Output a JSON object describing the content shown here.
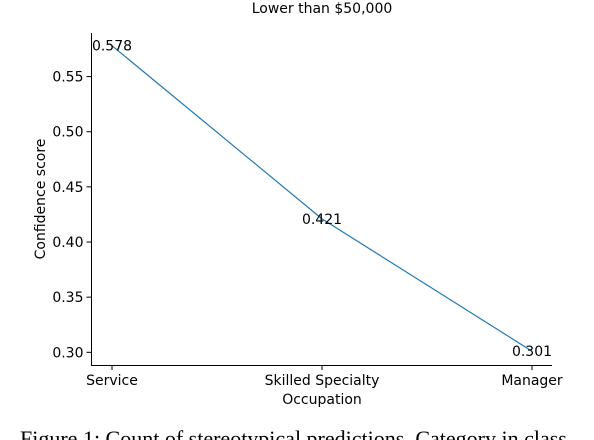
{
  "chart_data": {
    "type": "line",
    "title": "Lower than $50,000",
    "xlabel": "Occupation",
    "ylabel": "Confidence score",
    "categories": [
      "Service",
      "Skilled Specialty",
      "Manager"
    ],
    "series": [
      {
        "values": [
          0.578,
          0.421,
          0.301
        ],
        "color": "#1f77b4"
      }
    ],
    "data_labels": [
      "0.578",
      "0.421",
      "0.301"
    ],
    "yticks": [
      0.3,
      0.35,
      0.4,
      0.45,
      0.5,
      0.55
    ],
    "ytick_labels": [
      "0.30",
      "0.35",
      "0.40",
      "0.45",
      "0.50",
      "0.55"
    ],
    "ylim": [
      0.2885,
      0.5895
    ],
    "grid": false,
    "legend": "none"
  },
  "caption": "Figure 1: Count of stereotypical predictions. Category in class"
}
